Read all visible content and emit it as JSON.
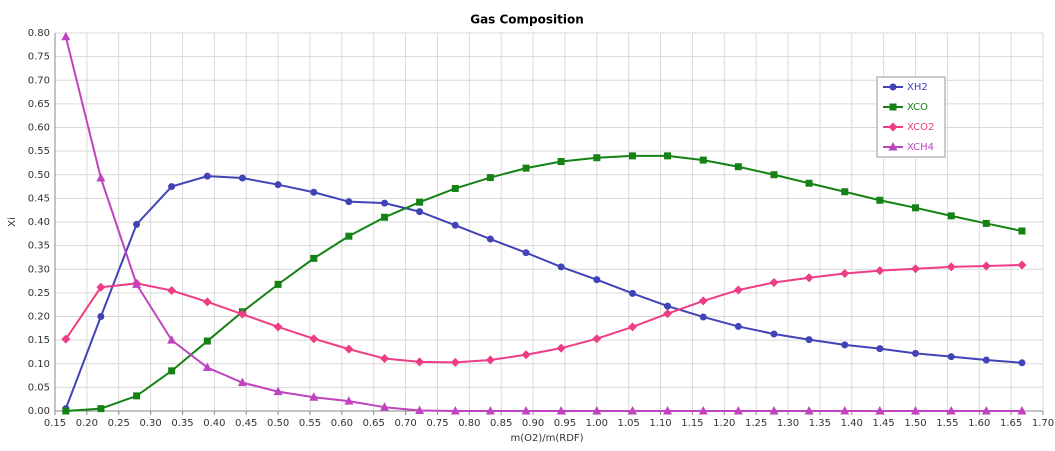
{
  "chart_data": {
    "type": "line",
    "title": "Gas Composition",
    "x_label": "m(O2)/m(RDF)",
    "y_label": "Xi",
    "x": [
      0.167,
      0.222,
      0.278,
      0.333,
      0.389,
      0.444,
      0.5,
      0.556,
      0.611,
      0.667,
      0.722,
      0.778,
      0.833,
      0.889,
      0.944,
      1.0,
      1.056,
      1.111,
      1.167,
      1.222,
      1.278,
      1.333,
      1.389,
      1.444,
      1.5,
      1.556,
      1.611,
      1.667
    ],
    "series": [
      {
        "name": "XH2",
        "color": "#4343b8",
        "marker": "circle",
        "values": [
          0.005,
          0.2,
          0.395,
          0.475,
          0.497,
          0.493,
          0.479,
          0.463,
          0.443,
          0.44,
          0.422,
          0.393,
          0.364,
          0.335,
          0.305,
          0.278,
          0.249,
          0.222,
          0.199,
          0.179,
          0.163,
          0.151,
          0.14,
          0.132,
          0.122,
          0.115,
          0.108,
          0.102
        ]
      },
      {
        "name": "XCO",
        "color": "#148214",
        "marker": "square",
        "values": [
          0,
          0.005,
          0.032,
          0.085,
          0.148,
          0.21,
          0.268,
          0.323,
          0.37,
          0.41,
          0.442,
          0.471,
          0.494,
          0.514,
          0.528,
          0.536,
          0.54,
          0.54,
          0.531,
          0.517,
          0.5,
          0.482,
          0.464,
          0.446,
          0.43,
          0.413,
          0.397,
          0.381
        ]
      },
      {
        "name": "XCO2",
        "color": "#ee3d84",
        "marker": "diamond",
        "values": [
          0.152,
          0.262,
          0.27,
          0.255,
          0.231,
          0.205,
          0.178,
          0.153,
          0.131,
          0.111,
          0.104,
          0.103,
          0.108,
          0.119,
          0.133,
          0.153,
          0.178,
          0.206,
          0.233,
          0.256,
          0.272,
          0.282,
          0.291,
          0.297,
          0.301,
          0.305,
          0.307,
          0.309
        ]
      },
      {
        "name": "XCH4",
        "color": "#c043c0",
        "marker": "triangle",
        "values": [
          0.792,
          0.493,
          0.268,
          0.15,
          0.092,
          0.06,
          0.041,
          0.029,
          0.021,
          0.008,
          0.001,
          0,
          0,
          0,
          0,
          0,
          0,
          0,
          0,
          0,
          0,
          0,
          0,
          0,
          0,
          0,
          0,
          0
        ]
      }
    ],
    "xlim": [
      0.15,
      1.7
    ],
    "xticks": [
      0.15,
      {
        "value": 0.2,
        "label": "0.20"
      },
      0.25,
      {
        "value": 0.3,
        "label": "0.30"
      },
      0.35,
      {
        "value": 0.4,
        "label": "0.40"
      },
      0.45,
      {
        "value": 0.5,
        "label": "0.50"
      },
      0.55,
      {
        "value": 0.6,
        "label": "0.60"
      },
      0.65,
      {
        "value": 0.7,
        "label": "0.70"
      },
      0.75,
      {
        "value": 0.8,
        "label": "0.80"
      },
      0.85,
      {
        "value": 0.9,
        "label": "0.90"
      },
      0.95,
      {
        "value": 1,
        "label": "1.00"
      },
      1.05,
      {
        "value": 1.1,
        "label": "1.10"
      },
      1.15,
      {
        "value": 1.2,
        "label": "1.20"
      },
      1.25,
      {
        "value": 1.3,
        "label": "1.30"
      },
      1.35,
      {
        "value": 1.4,
        "label": "1.40"
      },
      1.45,
      {
        "value": 1.5,
        "label": "1.50"
      },
      1.55,
      {
        "value": 1.6,
        "label": "1.60"
      },
      1.65,
      {
        "value": 1.7,
        "label": "1.70"
      }
    ],
    "ylim": [
      0,
      0.8
    ],
    "yticks": [
      {
        "value": 0,
        "label": "0.00"
      },
      0.05,
      {
        "value": 0.1,
        "label": "0.10"
      },
      0.15,
      {
        "value": 0.2,
        "label": "0.20"
      },
      0.25,
      {
        "value": 0.3,
        "label": "0.30"
      },
      0.35,
      {
        "value": 0.4,
        "label": "0.40"
      },
      0.45,
      {
        "value": 0.5,
        "label": "0.50"
      },
      0.55,
      {
        "value": 0.6,
        "label": "0.60"
      },
      0.65,
      {
        "value": 0.7,
        "label": "0.70"
      },
      0.75,
      {
        "value": 0.8,
        "label": "0.80"
      }
    ],
    "grid": true,
    "legend": "right"
  }
}
